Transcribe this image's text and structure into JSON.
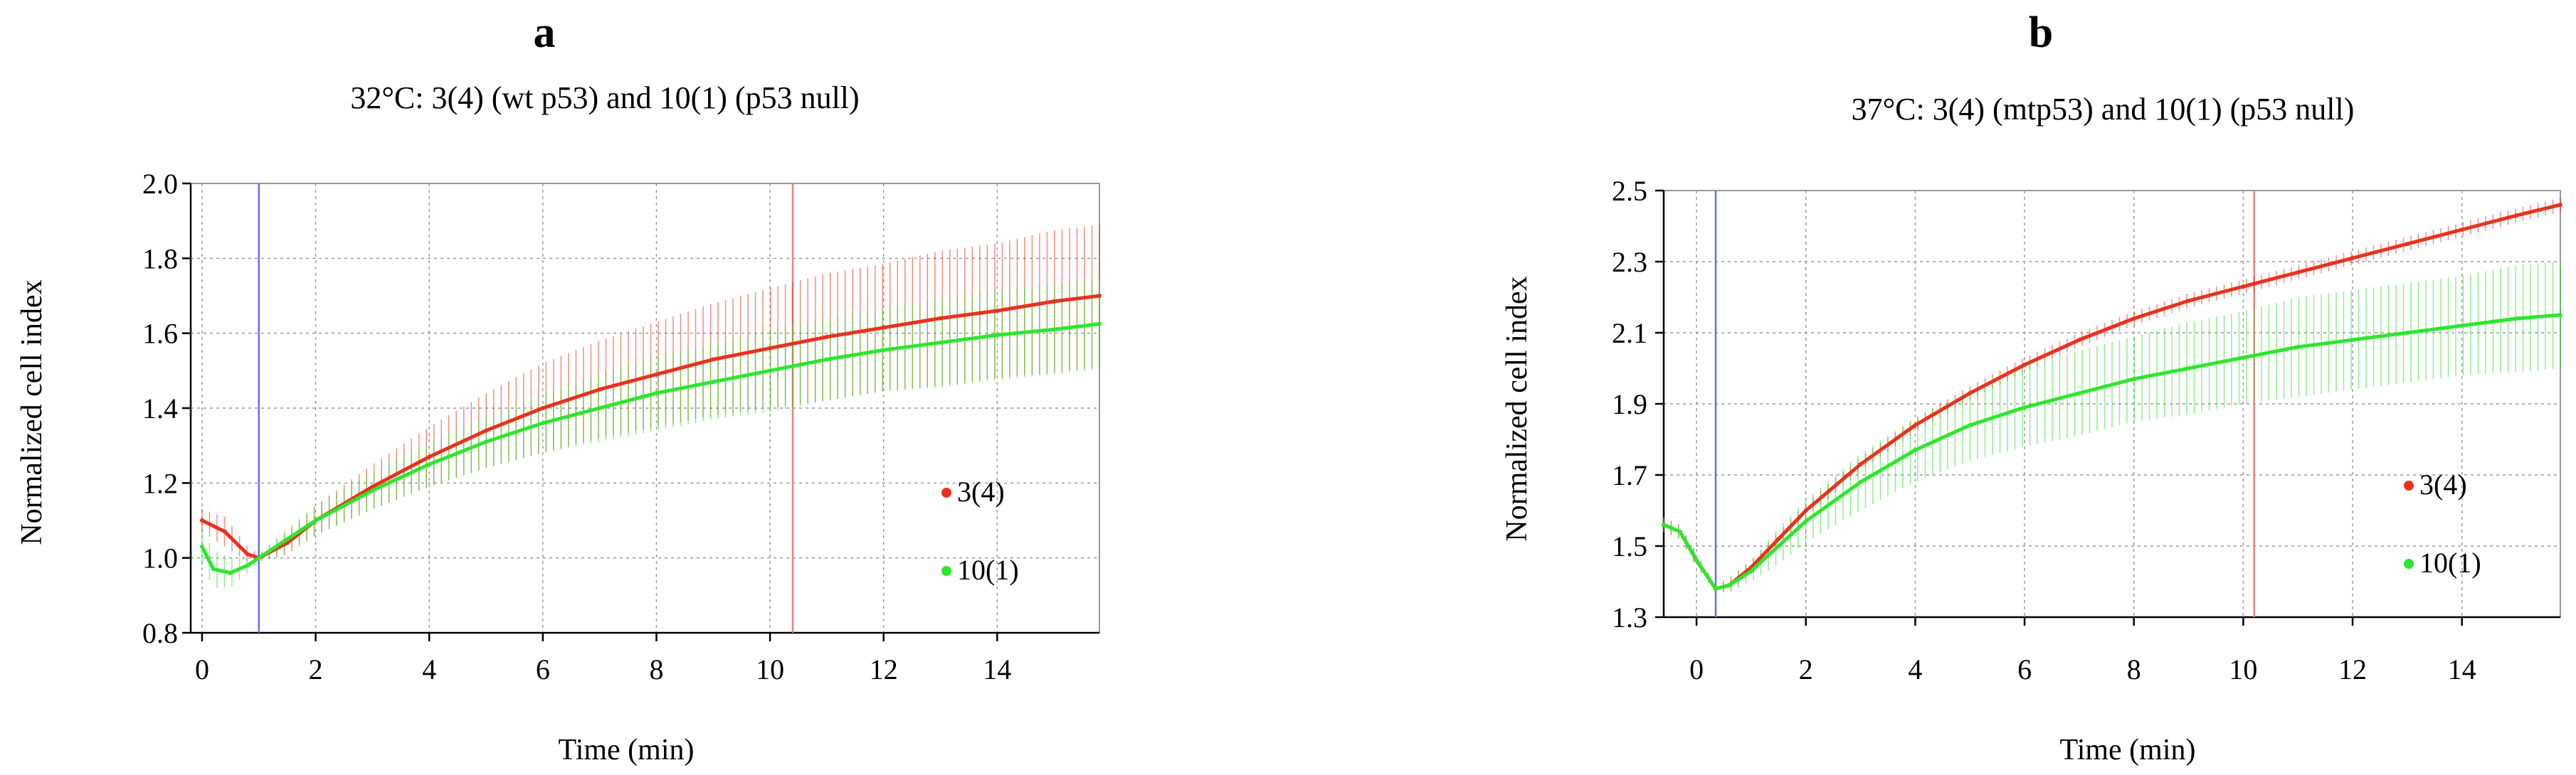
{
  "chart_data": [
    {
      "type": "line",
      "panel": "a",
      "title": "32°C: 3(4) (wt p53) and 10(1) (p53 null)",
      "xlabel": "Time (min)",
      "ylabel": "Normalized cell  index",
      "xlim": [
        -0.2,
        15.8
      ],
      "ylim": [
        0.8,
        2.0
      ],
      "xticks": [
        0,
        2,
        4,
        6,
        8,
        10,
        12,
        14
      ],
      "yticks": [
        0.8,
        1.0,
        1.2,
        1.4,
        1.6,
        1.8,
        2.0
      ],
      "ytick_labels": [
        "0.8",
        "1.0",
        "1.2",
        "1.4",
        "1.6",
        "1.8",
        "2.0"
      ],
      "grid": true,
      "vlines": [
        {
          "x": 1.0,
          "color": "#6b6bf0"
        },
        {
          "x": 10.4,
          "color": "#f08080"
        }
      ],
      "legend_position": "right",
      "series": [
        {
          "name": "3(4)",
          "color": "#e8321e",
          "x": [
            0,
            0.4,
            0.8,
            1.0,
            1.5,
            2,
            3,
            4,
            5,
            6,
            7,
            8,
            9,
            10,
            11,
            12,
            13,
            14,
            15,
            15.8
          ],
          "y": [
            1.1,
            1.07,
            1.01,
            1.0,
            1.04,
            1.1,
            1.19,
            1.27,
            1.34,
            1.4,
            1.45,
            1.49,
            1.53,
            1.56,
            1.59,
            1.615,
            1.64,
            1.66,
            1.685,
            1.7
          ],
          "err": [
            0.03,
            0.04,
            0.02,
            0.01,
            0.03,
            0.04,
            0.06,
            0.08,
            0.1,
            0.12,
            0.13,
            0.14,
            0.15,
            0.16,
            0.17,
            0.17,
            0.18,
            0.18,
            0.19,
            0.19
          ]
        },
        {
          "name": "10(1)",
          "color": "#2ee62e",
          "x": [
            0,
            0.2,
            0.5,
            0.8,
            1.0,
            1.5,
            2,
            3,
            4,
            5,
            6,
            7,
            8,
            9,
            10,
            11,
            12,
            13,
            14,
            15,
            15.8
          ],
          "y": [
            1.03,
            0.97,
            0.96,
            0.98,
            1.0,
            1.05,
            1.1,
            1.18,
            1.25,
            1.31,
            1.36,
            1.4,
            1.44,
            1.47,
            1.5,
            1.53,
            1.555,
            1.575,
            1.595,
            1.61,
            1.625
          ],
          "err": [
            0.05,
            0.05,
            0.04,
            0.02,
            0.01,
            0.03,
            0.04,
            0.05,
            0.06,
            0.07,
            0.08,
            0.09,
            0.1,
            0.1,
            0.11,
            0.11,
            0.11,
            0.12,
            0.12,
            0.12,
            0.12
          ]
        }
      ]
    },
    {
      "type": "line",
      "panel": "b",
      "title": "37°C: 3(4) (mtp53) and 10(1) (p53 null)",
      "xlabel": "Time (min)",
      "ylabel": "Normalized cell  index",
      "xlim": [
        -0.6,
        15.8
      ],
      "ylim": [
        1.3,
        2.5
      ],
      "xticks": [
        0,
        2,
        4,
        6,
        8,
        10,
        12,
        14
      ],
      "yticks": [
        1.3,
        1.5,
        1.7,
        1.9,
        2.1,
        2.3,
        2.5
      ],
      "ytick_labels": [
        "1.3",
        "1.5",
        "1.7",
        "1.9",
        "2.1",
        "2.3",
        "2.5"
      ],
      "grid": true,
      "vlines": [
        {
          "x": 0.35,
          "color": "#6b6bf0"
        },
        {
          "x": 10.2,
          "color": "#f08080"
        }
      ],
      "legend_position": "right",
      "series": [
        {
          "name": "3(4)",
          "color": "#e8321e",
          "x": [
            -0.6,
            -0.3,
            0,
            0.35,
            0.6,
            1,
            1.5,
            2,
            3,
            4,
            5,
            6,
            7,
            8,
            9,
            10,
            11,
            12,
            13,
            14,
            15,
            15.8
          ],
          "y": [
            1.56,
            1.54,
            1.46,
            1.38,
            1.39,
            1.44,
            1.52,
            1.6,
            1.73,
            1.84,
            1.93,
            2.01,
            2.08,
            2.14,
            2.19,
            2.23,
            2.27,
            2.31,
            2.35,
            2.39,
            2.43,
            2.46
          ],
          "err": [
            0.02,
            0.02,
            0.02,
            0.01,
            0.02,
            0.02,
            0.02,
            0.02,
            0.02,
            0.02,
            0.02,
            0.02,
            0.02,
            0.02,
            0.02,
            0.02,
            0.02,
            0.02,
            0.02,
            0.02,
            0.02,
            0.02
          ]
        },
        {
          "name": "10(1)",
          "color": "#2ee62e",
          "x": [
            -0.6,
            -0.3,
            0,
            0.35,
            0.6,
            1,
            1.5,
            2,
            3,
            4,
            5,
            6,
            7,
            8,
            9,
            10,
            11,
            12,
            13,
            14,
            15,
            15.8
          ],
          "y": [
            1.56,
            1.54,
            1.46,
            1.38,
            1.39,
            1.43,
            1.5,
            1.57,
            1.68,
            1.77,
            1.84,
            1.89,
            1.93,
            1.97,
            2.0,
            2.03,
            2.06,
            2.08,
            2.1,
            2.12,
            2.14,
            2.15
          ],
          "err": [
            0.02,
            0.02,
            0.02,
            0.01,
            0.02,
            0.03,
            0.05,
            0.06,
            0.08,
            0.09,
            0.1,
            0.11,
            0.12,
            0.12,
            0.13,
            0.13,
            0.14,
            0.14,
            0.14,
            0.14,
            0.15,
            0.15
          ]
        }
      ]
    }
  ]
}
